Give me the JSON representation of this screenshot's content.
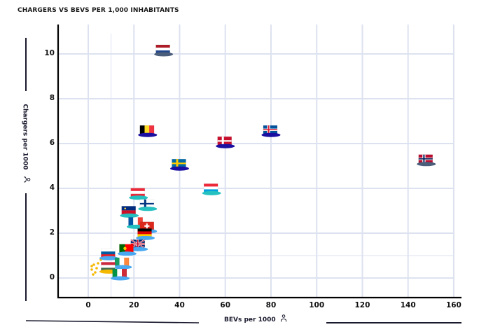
{
  "title": "CHARGERS VS BEVS PER 1,000 INHABITANTS",
  "colors": {
    "grid": "#dde2f0",
    "axis": "#000000",
    "accent": "#1a1a2e"
  },
  "chart_data": {
    "type": "scatter",
    "title": "CHARGERS VS BEVS PER 1,000 INHABITANTS",
    "xlabel": "BEVs per 1000",
    "ylabel": "Chargers per 1000",
    "xlim": [
      -13,
      162
    ],
    "ylim": [
      -0.9,
      11.3
    ],
    "xticks": [
      0,
      20,
      40,
      60,
      80,
      100,
      120,
      140,
      160
    ],
    "yticks": [
      0,
      2,
      4,
      6,
      8,
      10
    ],
    "grid": true,
    "marker": "country flag top-hat",
    "points": [
      {
        "country": "Netherlands",
        "x": 33,
        "y": 10.0,
        "brim": "#4a5d7a"
      },
      {
        "country": "Belgium",
        "x": 26,
        "y": 6.4,
        "brim": "#1a0fa0"
      },
      {
        "country": "Iceland",
        "x": 80,
        "y": 6.4,
        "brim": "#1a0fa0"
      },
      {
        "country": "Denmark",
        "x": 60,
        "y": 5.9,
        "brim": "#1a0fa0"
      },
      {
        "country": "Norway",
        "x": 148,
        "y": 5.1,
        "brim": "#4a5d7a"
      },
      {
        "country": "Sweden",
        "x": 40,
        "y": 4.9,
        "brim": "#1a0fa0"
      },
      {
        "country": "Luxembourg",
        "x": 54,
        "y": 3.8,
        "brim": "#25c0c0"
      },
      {
        "country": "Austria",
        "x": 22,
        "y": 3.6,
        "brim": "#25c0c0"
      },
      {
        "country": "Finland",
        "x": 26,
        "y": 3.1,
        "brim": "#25c0c0"
      },
      {
        "country": "Liechtenstein",
        "x": 18,
        "y": 2.8,
        "brim": "#25c0c0"
      },
      {
        "country": "France",
        "x": 21,
        "y": 2.3,
        "brim": "#25c0c0"
      },
      {
        "country": "Switzerland",
        "x": 26,
        "y": 2.1,
        "brim": "#4aa8f0"
      },
      {
        "country": "Germany",
        "x": 25,
        "y": 1.8,
        "brim": "#4aa8f0"
      },
      {
        "country": "United Kingdom",
        "x": 22,
        "y": 1.3,
        "brim": "#4aa8f0"
      },
      {
        "country": "Portugal",
        "x": 17,
        "y": 1.1,
        "brim": "#4aa8f0"
      },
      {
        "country": "Slovenia",
        "x": 9,
        "y": 0.9,
        "brim": "#4aa8f0"
      },
      {
        "country": "Ireland",
        "x": 15,
        "y": 0.5,
        "brim": "#4aa8f0"
      },
      {
        "country": "Hungary",
        "x": 9,
        "y": 0.3,
        "brim": "#f5b800"
      },
      {
        "country": "Italy",
        "x": 14,
        "y": 0.0,
        "brim": "#4aa8f0"
      }
    ],
    "annotations": [
      "yellow sparkle dots next to Hungary marker"
    ]
  },
  "labels": {
    "xlabel": "BEVs per 1000",
    "ylabel": "Chargers per 1000",
    "person_icon": "person-icon"
  }
}
